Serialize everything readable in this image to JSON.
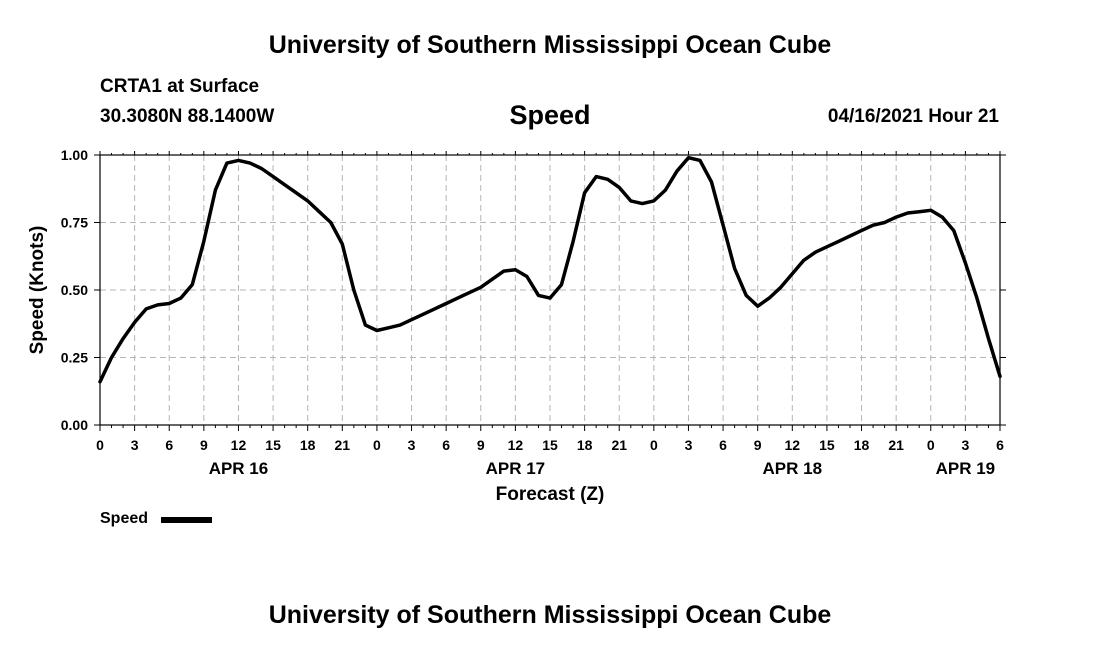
{
  "page": {
    "title_top": "University of Southern Mississippi Ocean Cube",
    "title_bottom": "University of Southern Mississippi Ocean Cube",
    "station": "CRTA1 at Surface",
    "coordinates": "30.3080N  88.1400W",
    "datetime": "04/16/2021 Hour 21"
  },
  "legend": {
    "label": "Speed"
  },
  "chart_data": {
    "type": "line",
    "title": "Speed",
    "xlabel": "Forecast (Z)",
    "ylabel": "Speed (Knots)",
    "ylim": [
      0,
      1.0
    ],
    "yticks": [
      0.0,
      0.25,
      0.5,
      0.75,
      1.0
    ],
    "ytick_labels": [
      "0.00",
      "0.25",
      "0.50",
      "0.75",
      "1.00"
    ],
    "xlim": [
      0,
      78
    ],
    "xticks": [
      0,
      3,
      6,
      9,
      12,
      15,
      18,
      21,
      24,
      27,
      30,
      33,
      36,
      39,
      42,
      45,
      48,
      51,
      54,
      57,
      60,
      63,
      66,
      69,
      72,
      75,
      78
    ],
    "xtick_labels": [
      "0",
      "3",
      "6",
      "9",
      "12",
      "15",
      "18",
      "21",
      "0",
      "3",
      "6",
      "9",
      "12",
      "15",
      "18",
      "21",
      "0",
      "3",
      "6",
      "9",
      "12",
      "15",
      "18",
      "21",
      "0",
      "3",
      "6"
    ],
    "date_labels": [
      {
        "x": 12,
        "label": "APR 16"
      },
      {
        "x": 36,
        "label": "APR 17"
      },
      {
        "x": 60,
        "label": "APR 18"
      },
      {
        "x": 75,
        "label": "APR 19"
      }
    ],
    "grid": true,
    "series": [
      {
        "name": "Speed",
        "x": [
          0,
          1,
          2,
          3,
          4,
          5,
          6,
          7,
          8,
          9,
          10,
          11,
          12,
          13,
          14,
          15,
          16,
          17,
          18,
          19,
          20,
          21,
          22,
          23,
          24,
          25,
          26,
          27,
          28,
          29,
          30,
          31,
          32,
          33,
          34,
          35,
          36,
          37,
          38,
          39,
          40,
          41,
          42,
          43,
          44,
          45,
          46,
          47,
          48,
          49,
          50,
          51,
          52,
          53,
          54,
          55,
          56,
          57,
          58,
          59,
          60,
          61,
          62,
          63,
          64,
          65,
          66,
          67,
          68,
          69,
          70,
          71,
          72,
          73,
          74,
          75,
          76,
          77,
          78
        ],
        "values": [
          0.16,
          0.25,
          0.32,
          0.38,
          0.43,
          0.445,
          0.45,
          0.47,
          0.52,
          0.68,
          0.87,
          0.97,
          0.98,
          0.97,
          0.95,
          0.92,
          0.89,
          0.86,
          0.83,
          0.79,
          0.75,
          0.67,
          0.5,
          0.37,
          0.35,
          0.36,
          0.37,
          0.39,
          0.41,
          0.43,
          0.45,
          0.47,
          0.49,
          0.51,
          0.54,
          0.57,
          0.575,
          0.55,
          0.48,
          0.47,
          0.52,
          0.68,
          0.86,
          0.92,
          0.91,
          0.88,
          0.83,
          0.82,
          0.83,
          0.87,
          0.94,
          0.99,
          0.98,
          0.9,
          0.74,
          0.58,
          0.48,
          0.44,
          0.47,
          0.51,
          0.56,
          0.61,
          0.64,
          0.66,
          0.68,
          0.7,
          0.72,
          0.74,
          0.75,
          0.77,
          0.785,
          0.79,
          0.795,
          0.77,
          0.72,
          0.6,
          0.47,
          0.32,
          0.18
        ]
      }
    ]
  }
}
